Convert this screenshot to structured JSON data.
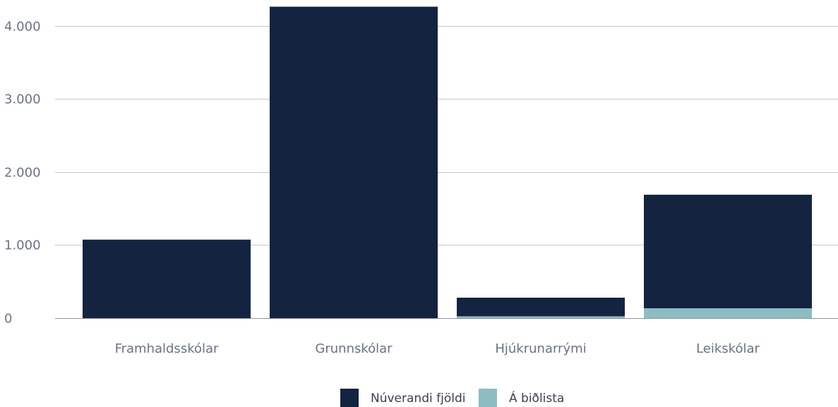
{
  "chart_data": {
    "type": "bar",
    "stacked": true,
    "categories": [
      "Framhaldsskólar",
      "Grunnskólar",
      "Hjúkrunarrými",
      "Leikskólar"
    ],
    "series": [
      {
        "name": "Á biðlista",
        "values": [
          0,
          0,
          25,
          135
        ],
        "color": "#8dbdc3"
      },
      {
        "name": "Núverandi fjöldi",
        "values": [
          1075,
          4265,
          255,
          1555
        ],
        "color": "#142340"
      }
    ],
    "legend_order": [
      "Núverandi fjöldi",
      "Á biðlista"
    ],
    "ylim": [
      0,
      4270
    ],
    "yticks": [
      {
        "value": 0,
        "label": "0"
      },
      {
        "value": 1000,
        "label": "1.000"
      },
      {
        "value": 2000,
        "label": "2.000"
      },
      {
        "value": 3000,
        "label": "3.000"
      },
      {
        "value": 4000,
        "label": "4.000"
      }
    ],
    "grid": true,
    "legend_position": "bottom-center",
    "title": "",
    "xlabel": "",
    "ylabel": ""
  }
}
